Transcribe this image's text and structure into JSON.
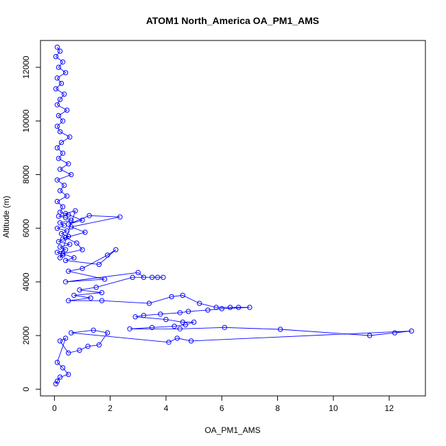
{
  "chart_data": {
    "type": "scatter",
    "title": "ATOM1 North_America OA_PM1_AMS",
    "xlabel": "OA_PM1_AMS",
    "ylabel": "Altitude (m)",
    "xlim": [
      -0.5,
      13.3
    ],
    "ylim": [
      -250,
      13000
    ],
    "xticks": [
      0,
      2,
      4,
      6,
      8,
      10,
      12
    ],
    "yticks": [
      0,
      2000,
      4000,
      6000,
      8000,
      10000,
      12000
    ],
    "grid": false,
    "legend": "none",
    "color": "#0000ff",
    "marker": "open-circle",
    "connected": true,
    "series": [
      {
        "x": [
          0.1,
          0.2,
          0.05,
          0.3,
          0.15,
          0.4,
          0.1,
          0.25,
          0.05,
          0.35,
          0.2,
          0.1,
          0.45,
          0.15,
          0.3,
          0.1,
          0.2,
          0.55,
          0.25,
          0.1,
          0.3,
          0.15,
          0.5,
          0.2,
          0.6,
          0.1,
          0.35,
          0.2,
          0.45,
          0.1,
          0.3,
          0.2,
          0.5,
          0.15,
          0.4,
          0.6,
          0.2,
          0.35,
          0.1,
          0.45,
          0.25,
          0.5,
          0.3,
          0.15,
          0.55,
          0.2,
          0.4,
          0.1,
          0.3,
          0.2,
          0.75,
          0.4,
          1.0,
          0.5,
          1.25,
          2.35,
          0.6,
          1.1,
          0.4,
          0.8,
          1.0,
          0.3,
          0.7,
          0.4,
          1.6,
          2.2,
          1.9,
          1.0,
          0.5,
          1.8,
          0.4,
          3.0,
          3.2,
          3.5,
          3.7,
          3.9,
          2.8,
          1.5,
          0.9,
          1.7,
          0.7,
          1.3,
          0.5,
          1.7,
          3.4,
          4.2,
          4.6,
          5.2,
          5.8,
          6.3,
          6.6,
          7.0,
          6.0,
          5.5,
          4.8,
          4.5,
          3.8,
          3.2,
          2.9,
          4.0,
          4.6,
          5.0,
          4.7,
          4.3,
          3.5,
          2.7,
          4.5,
          6.1,
          8.1,
          11.3,
          12.2,
          12.8,
          4.9,
          4.4,
          4.1,
          0.6,
          1.4,
          1.9,
          1.6,
          1.2,
          0.9,
          0.5,
          0.2,
          0.4,
          0.1,
          0.3,
          0.5,
          0.2,
          0.1,
          0.05
        ],
        "y": [
          12750,
          12600,
          12400,
          12200,
          12000,
          11800,
          11600,
          11400,
          11200,
          11000,
          10800,
          10600,
          10400,
          10200,
          10000,
          9800,
          9600,
          9400,
          9200,
          9000,
          8800,
          8600,
          8400,
          8200,
          8000,
          7800,
          7600,
          7400,
          7200,
          7000,
          6800,
          6600,
          6500,
          6450,
          6400,
          6300,
          6200,
          6100,
          6000,
          5900,
          5800,
          5700,
          5600,
          5500,
          5400,
          5300,
          5200,
          5100,
          5000,
          4900,
          6650,
          6550,
          6300,
          6150,
          6470,
          6420,
          6050,
          5850,
          5650,
          5450,
          5200,
          5050,
          4900,
          4800,
          4650,
          5200,
          5000,
          4500,
          4400,
          4100,
          4000,
          4350,
          4170,
          4170,
          4170,
          4170,
          4170,
          3800,
          3700,
          3600,
          3500,
          3400,
          3300,
          3300,
          3200,
          3450,
          3500,
          3200,
          3050,
          3050,
          3050,
          3050,
          3000,
          2950,
          2900,
          2850,
          2800,
          2750,
          2700,
          2600,
          2500,
          2500,
          2400,
          2350,
          2300,
          2250,
          2250,
          2300,
          2230,
          2000,
          2100,
          2170,
          1800,
          1900,
          1750,
          2100,
          2200,
          2100,
          1650,
          1600,
          1450,
          1350,
          1800,
          1900,
          1000,
          800,
          550,
          450,
          300,
          200
        ]
      }
    ]
  }
}
